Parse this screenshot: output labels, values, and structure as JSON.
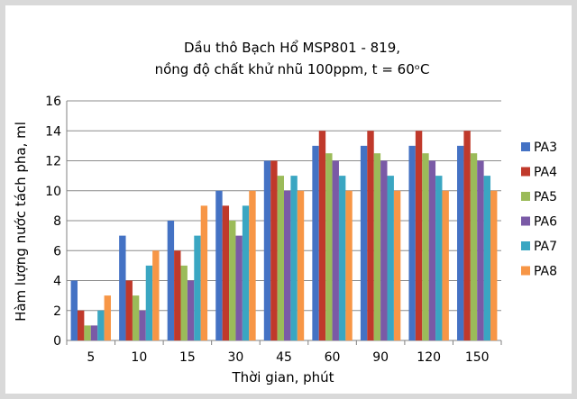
{
  "chart_data": {
    "type": "bar",
    "title_lines": [
      "Dầu thô Bạch Hổ MSP801 - 819,",
      "nồng độ chất khử nhũ 100ppm, t = 60ᵒC"
    ],
    "xlabel": "Thời gian, phút",
    "ylabel": "Hàm lượng nước tách pha, ml",
    "categories": [
      "5",
      "10",
      "15",
      "30",
      "45",
      "60",
      "90",
      "120",
      "150"
    ],
    "ylim": [
      0,
      16
    ],
    "yticks": [
      "0",
      "2",
      "4",
      "6",
      "8",
      "10",
      "12",
      "14",
      "16"
    ],
    "grid": true,
    "legend_position": "right",
    "series": [
      {
        "name": "PA3",
        "color": "#4472c4",
        "values": [
          4,
          7,
          8,
          10,
          12,
          13,
          13,
          13,
          13
        ]
      },
      {
        "name": "PA4",
        "color": "#c0392b",
        "values": [
          2,
          4,
          6,
          9,
          12,
          14,
          14,
          14,
          14
        ]
      },
      {
        "name": "PA5",
        "color": "#9bbb59",
        "values": [
          1,
          3,
          5,
          8,
          11,
          12.5,
          12.5,
          12.5,
          12.5
        ]
      },
      {
        "name": "PA6",
        "color": "#7a5aa6",
        "values": [
          1,
          2,
          4,
          7,
          10,
          12,
          12,
          12,
          12
        ]
      },
      {
        "name": "PA7",
        "color": "#3aa6c2",
        "values": [
          2,
          5,
          7,
          9,
          11,
          11,
          11,
          11,
          11
        ]
      },
      {
        "name": "PA8",
        "color": "#f79646",
        "values": [
          3,
          6,
          9,
          10,
          10,
          10,
          10,
          10,
          10
        ]
      }
    ]
  }
}
